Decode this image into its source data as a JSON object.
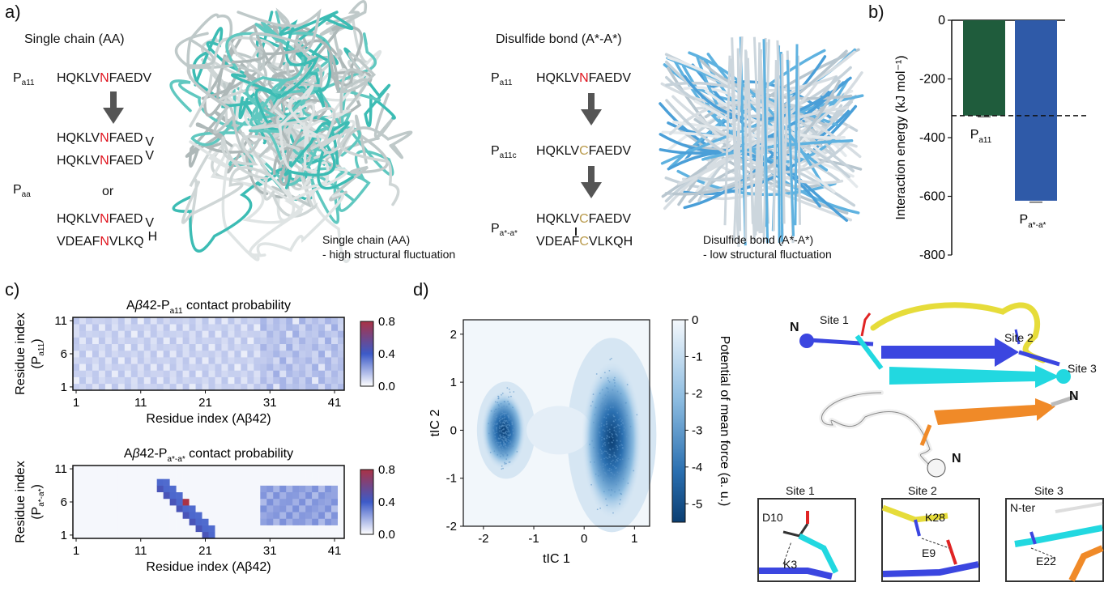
{
  "panel_labels": {
    "a": "a)",
    "b": "b)",
    "c": "c)",
    "d": "d)"
  },
  "panel_a": {
    "left": {
      "title": "Single chain (AA)",
      "pa11_label": "P",
      "pa11_sub": "a11",
      "seq_pre": "HQKLV",
      "seq_mut": "N",
      "seq_post": "FAEDV",
      "seq_trunc": "FAED",
      "seq_tail": "V",
      "paa_label": "P",
      "paa_sub": "aa",
      "or": "or",
      "rev_pre": "VDEAF",
      "rev_mut": "N",
      "rev_post": "VLKQ",
      "rev_tail": "H",
      "caption1": "Single chain (AA)",
      "caption2": "- high structural fluctuation"
    },
    "right": {
      "title": "Disulfide bond (A*-A*)",
      "pa11_label": "P",
      "pa11_sub": "a11",
      "pa11c_label": "P",
      "pa11c_sub": "a11c",
      "pstar_label": "P",
      "pstar_sub": "a*-a*",
      "seq_pre": "HQKLV",
      "seq_n": "N",
      "seq_c": "C",
      "seq_post": "FAEDV",
      "rev_pre": "VDEAF",
      "rev_c": "C",
      "rev_post": "VLKQH",
      "caption1": "Disulfide bond (A*-A*)",
      "caption2": "- low structural fluctuation"
    }
  },
  "chart_data": [
    {
      "type": "bar",
      "ylabel": "Interaction energy (kJ mol⁻¹)",
      "ylim": [
        -800,
        0
      ],
      "yticks": [
        0,
        -200,
        -400,
        -600,
        -800
      ],
      "bars": [
        {
          "label_main": "P",
          "label_sub": "a11",
          "value": -325,
          "error": 4,
          "color": "#1f5c3c"
        },
        {
          "label_main": "P",
          "label_sub": "a*-a*",
          "value": -615,
          "error": 5,
          "color": "#2f5aa8"
        }
      ],
      "reference_line": -325
    },
    {
      "type": "heatmap",
      "title_pre": "A",
      "title_beta": "β",
      "title_mid": "42-P",
      "title_sub": "a11",
      "title_post": " contact probability",
      "xlabel": "Residue index (Aβ42)",
      "ylabel_main": "Residue index",
      "ylabel_sub_p": "(P",
      "ylabel_sub": "a11",
      "ylabel_sub_end": ")",
      "xticks": [
        "1",
        "11",
        "21",
        "31",
        "41"
      ],
      "yticks": [
        "11",
        "6",
        "1"
      ],
      "colorbar": {
        "ticks": [
          "0.8",
          "0.4",
          "0.0"
        ],
        "range": [
          0,
          0.8
        ]
      },
      "n_x": 42,
      "n_y": 11,
      "pattern": "diffuse, low probability (~0.05-0.2) across all residues"
    },
    {
      "type": "heatmap",
      "title_pre": "A",
      "title_beta": "β",
      "title_mid": "42-P",
      "title_sub": "a*-a*",
      "title_post": " contact probability",
      "xlabel": "Residue index (Aβ42)",
      "ylabel_main": "Residue index",
      "ylabel_sub_p": "(P",
      "ylabel_sub": "a*-a*",
      "ylabel_sub_end": ")",
      "xticks": [
        "1",
        "11",
        "21",
        "31",
        "41"
      ],
      "yticks": [
        "11",
        "6",
        "1"
      ],
      "colorbar": {
        "ticks": [
          "0.8",
          "0.4",
          "0.0"
        ],
        "range": [
          0,
          0.8
        ]
      },
      "n_x": 42,
      "n_y": 11,
      "pattern": "diagonal band residues 14-22 of Aβ42 vs P residues 9-1 (~0.4-0.6, peak 0.8); weaker band residues 31-41 (~0.2-0.3)"
    },
    {
      "type": "heatmap",
      "xlabel": "tIC 1",
      "ylabel": "tIC 2",
      "xticks": [
        "-2",
        "-1",
        "0",
        "1"
      ],
      "yticks": [
        "2",
        "1",
        "0",
        "-1",
        "-2"
      ],
      "xlim": [
        -2.4,
        1.3
      ],
      "ylim": [
        -2,
        2.3
      ],
      "colorbar": {
        "label": "Potential of mean force (a. u.)",
        "ticks": [
          "0",
          "-1",
          "-2",
          "-3",
          "-4",
          "-5"
        ],
        "range": [
          -5.5,
          0
        ]
      },
      "basins": [
        {
          "x": -1.6,
          "y": 0.0,
          "depth": -5
        },
        {
          "x": 0.55,
          "y": -0.2,
          "depth": -5.5
        }
      ]
    }
  ],
  "panel_d_structure": {
    "labels": {
      "site1": "Site 1",
      "site2": "Site 2",
      "site3": "Site 3",
      "n": "N"
    },
    "insets": [
      {
        "title": "Site 1",
        "res_a": "D10",
        "res_b": "K3"
      },
      {
        "title": "Site 2",
        "res_a": "K28",
        "res_b": "E9"
      },
      {
        "title": "Site 3",
        "res_a": "N-ter",
        "res_b": "E22"
      }
    ]
  },
  "colors": {
    "red": "#e0141e",
    "gold": "#b99a4b",
    "teal": "#3cbcb4",
    "blue": "#4a9fd8",
    "cyan": "#22d8e0",
    "indigo": "#3b46e0",
    "orange": "#f08a28",
    "yellow": "#e6dc3a"
  }
}
